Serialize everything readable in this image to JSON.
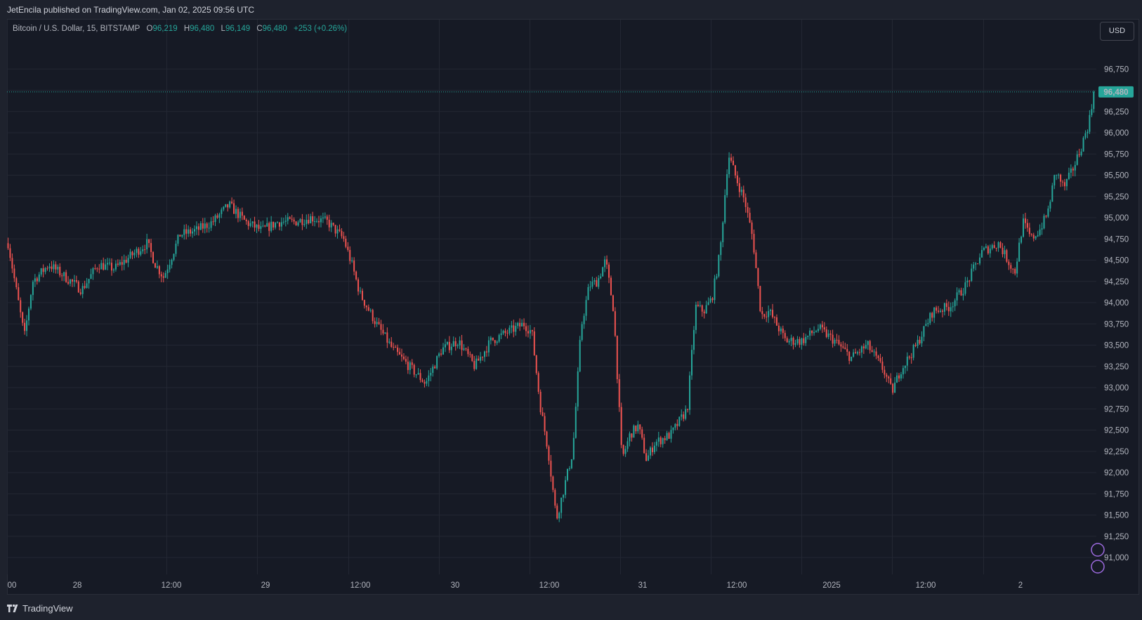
{
  "header": {
    "publisher": "JetEncila published on TradingView.com, Jan 02, 2025 09:56 UTC"
  },
  "legend": {
    "symbol": "Bitcoin / U.S. Dollar, 15, BITSTAMP",
    "o_label": "O",
    "o_value": "96,219",
    "h_label": "H",
    "h_value": "96,480",
    "l_label": "L",
    "l_value": "96,149",
    "c_label": "C",
    "c_value": "96,480",
    "change": "+253 (+0.26%)"
  },
  "currency_button": "USD",
  "footer": {
    "brand": "TradingView"
  },
  "colors": {
    "up": "#26a69a",
    "down": "#ef5350",
    "background": "#161a25",
    "grid": "#232733",
    "text": "#b2b5be",
    "last_price_bg": "#26a69a"
  },
  "chart_data": {
    "type": "candlestick",
    "interval": "15",
    "yaxis": {
      "ticks": [
        91000,
        91250,
        91500,
        91750,
        92000,
        92250,
        92500,
        92750,
        93000,
        93250,
        93500,
        93750,
        94000,
        94250,
        94500,
        94750,
        95000,
        95250,
        95500,
        95750,
        96000,
        96250,
        96500,
        96750
      ],
      "tick_labels": [
        "91,000",
        "91,250",
        "91,500",
        "91,750",
        "92,000",
        "92,250",
        "92,500",
        "92,750",
        "93,000",
        "93,250",
        "93,500",
        "93,750",
        "94,000",
        "94,250",
        "94,500",
        "94,750",
        "95,000",
        "95,250",
        "95,500",
        "95,750",
        "96,000",
        "96,250",
        "96,500",
        "96,750"
      ],
      "range": [
        90850,
        96900
      ]
    },
    "xaxis": {
      "ticks": [
        "00",
        "28",
        "12:00",
        "29",
        "12:00",
        "30",
        "12:00",
        "31",
        "12:00",
        "2025",
        "12:00",
        "2"
      ]
    },
    "last_price": 96480,
    "last_price_label": "96,480",
    "price_path": [
      [
        "2024-12-27 21:00",
        94700
      ],
      [
        "2024-12-27 22:00",
        94150
      ],
      [
        "2024-12-27 23:00",
        93600
      ],
      [
        "2024-12-28 00:00",
        94250
      ],
      [
        "2024-12-28 02:00",
        94450
      ],
      [
        "2024-12-28 04:00",
        94300
      ],
      [
        "2024-12-28 06:00",
        94150
      ],
      [
        "2024-12-28 08:00",
        94450
      ],
      [
        "2024-12-28 10:00",
        94400
      ],
      [
        "2024-12-28 12:00",
        94550
      ],
      [
        "2024-12-28 14:00",
        94700
      ],
      [
        "2024-12-28 15:00",
        94450
      ],
      [
        "2024-12-28 16:00",
        94300
      ],
      [
        "2024-12-28 18:00",
        94800
      ],
      [
        "2024-12-28 20:00",
        94850
      ],
      [
        "2024-12-28 22:00",
        94950
      ],
      [
        "2024-12-29 00:00",
        95150
      ],
      [
        "2024-12-29 02:00",
        94950
      ],
      [
        "2024-12-29 04:00",
        94850
      ],
      [
        "2024-12-29 06:00",
        94950
      ],
      [
        "2024-12-29 08:00",
        94950
      ],
      [
        "2024-12-29 10:00",
        95000
      ],
      [
        "2024-12-29 12:00",
        94950
      ],
      [
        "2024-12-29 14:00",
        94750
      ],
      [
        "2024-12-29 15:00",
        94450
      ],
      [
        "2024-12-29 16:00",
        94100
      ],
      [
        "2024-12-29 18:00",
        93750
      ],
      [
        "2024-12-29 20:00",
        93450
      ],
      [
        "2024-12-29 22:00",
        93250
      ],
      [
        "2024-12-30 00:00",
        93050
      ],
      [
        "2024-12-30 02:00",
        93450
      ],
      [
        "2024-12-30 04:00",
        93550
      ],
      [
        "2024-12-30 06:00",
        93250
      ],
      [
        "2024-12-30 08:00",
        93550
      ],
      [
        "2024-12-30 10:00",
        93650
      ],
      [
        "2024-12-30 12:00",
        93750
      ],
      [
        "2024-12-30 13:00",
        93650
      ],
      [
        "2024-12-30 14:00",
        92800
      ],
      [
        "2024-12-30 15:00",
        92250
      ],
      [
        "2024-12-30 16:00",
        91450
      ],
      [
        "2024-12-30 17:00",
        91850
      ],
      [
        "2024-12-30 18:00",
        92250
      ],
      [
        "2024-12-30 19:00",
        93700
      ],
      [
        "2024-12-30 20:00",
        94200
      ],
      [
        "2024-12-30 21:00",
        94250
      ],
      [
        "2024-12-30 22:00",
        94500
      ],
      [
        "2024-12-30 23:00",
        93900
      ],
      [
        "2024-12-31 00:00",
        92150
      ],
      [
        "2024-12-31 01:00",
        92450
      ],
      [
        "2024-12-31 02:00",
        92550
      ],
      [
        "2024-12-31 03:00",
        92150
      ],
      [
        "2024-12-31 04:00",
        92350
      ],
      [
        "2024-12-31 06:00",
        92450
      ],
      [
        "2024-12-31 08:00",
        92750
      ],
      [
        "2024-12-31 09:00",
        93950
      ],
      [
        "2024-12-31 10:00",
        93900
      ],
      [
        "2024-12-31 11:00",
        94050
      ],
      [
        "2024-12-31 12:00",
        94600
      ],
      [
        "2024-12-31 13:00",
        95750
      ],
      [
        "2024-12-31 14:00",
        95450
      ],
      [
        "2024-12-31 15:00",
        95200
      ],
      [
        "2024-12-31 16:00",
        94750
      ],
      [
        "2024-12-31 17:00",
        93850
      ],
      [
        "2024-12-31 18:00",
        93900
      ],
      [
        "2024-12-31 20:00",
        93550
      ],
      [
        "2024-12-31 22:00",
        93550
      ],
      [
        "2025-01-01 00:00",
        93700
      ],
      [
        "2025-01-01 02:00",
        93550
      ],
      [
        "2025-01-01 04:00",
        93350
      ],
      [
        "2025-01-01 06:00",
        93500
      ],
      [
        "2025-01-01 08:00",
        93200
      ],
      [
        "2025-01-01 09:00",
        92950
      ],
      [
        "2025-01-01 10:00",
        93200
      ],
      [
        "2025-01-01 12:00",
        93500
      ],
      [
        "2025-01-01 14:00",
        93900
      ],
      [
        "2025-01-01 16:00",
        93950
      ],
      [
        "2025-01-01 18:00",
        94200
      ],
      [
        "2025-01-01 20:00",
        94600
      ],
      [
        "2025-01-01 22:00",
        94700
      ],
      [
        "2025-01-02 00:00",
        94350
      ],
      [
        "2025-01-02 01:00",
        94950
      ],
      [
        "2025-01-02 02:00",
        94750
      ],
      [
        "2025-01-02 03:00",
        94850
      ],
      [
        "2025-01-02 04:00",
        95050
      ],
      [
        "2025-01-02 05:00",
        95550
      ],
      [
        "2025-01-02 06:00",
        95350
      ],
      [
        "2025-01-02 07:00",
        95550
      ],
      [
        "2025-01-02 08:00",
        95800
      ],
      [
        "2025-01-02 09:00",
        96100
      ],
      [
        "2025-01-02 09:45",
        96480
      ]
    ]
  }
}
